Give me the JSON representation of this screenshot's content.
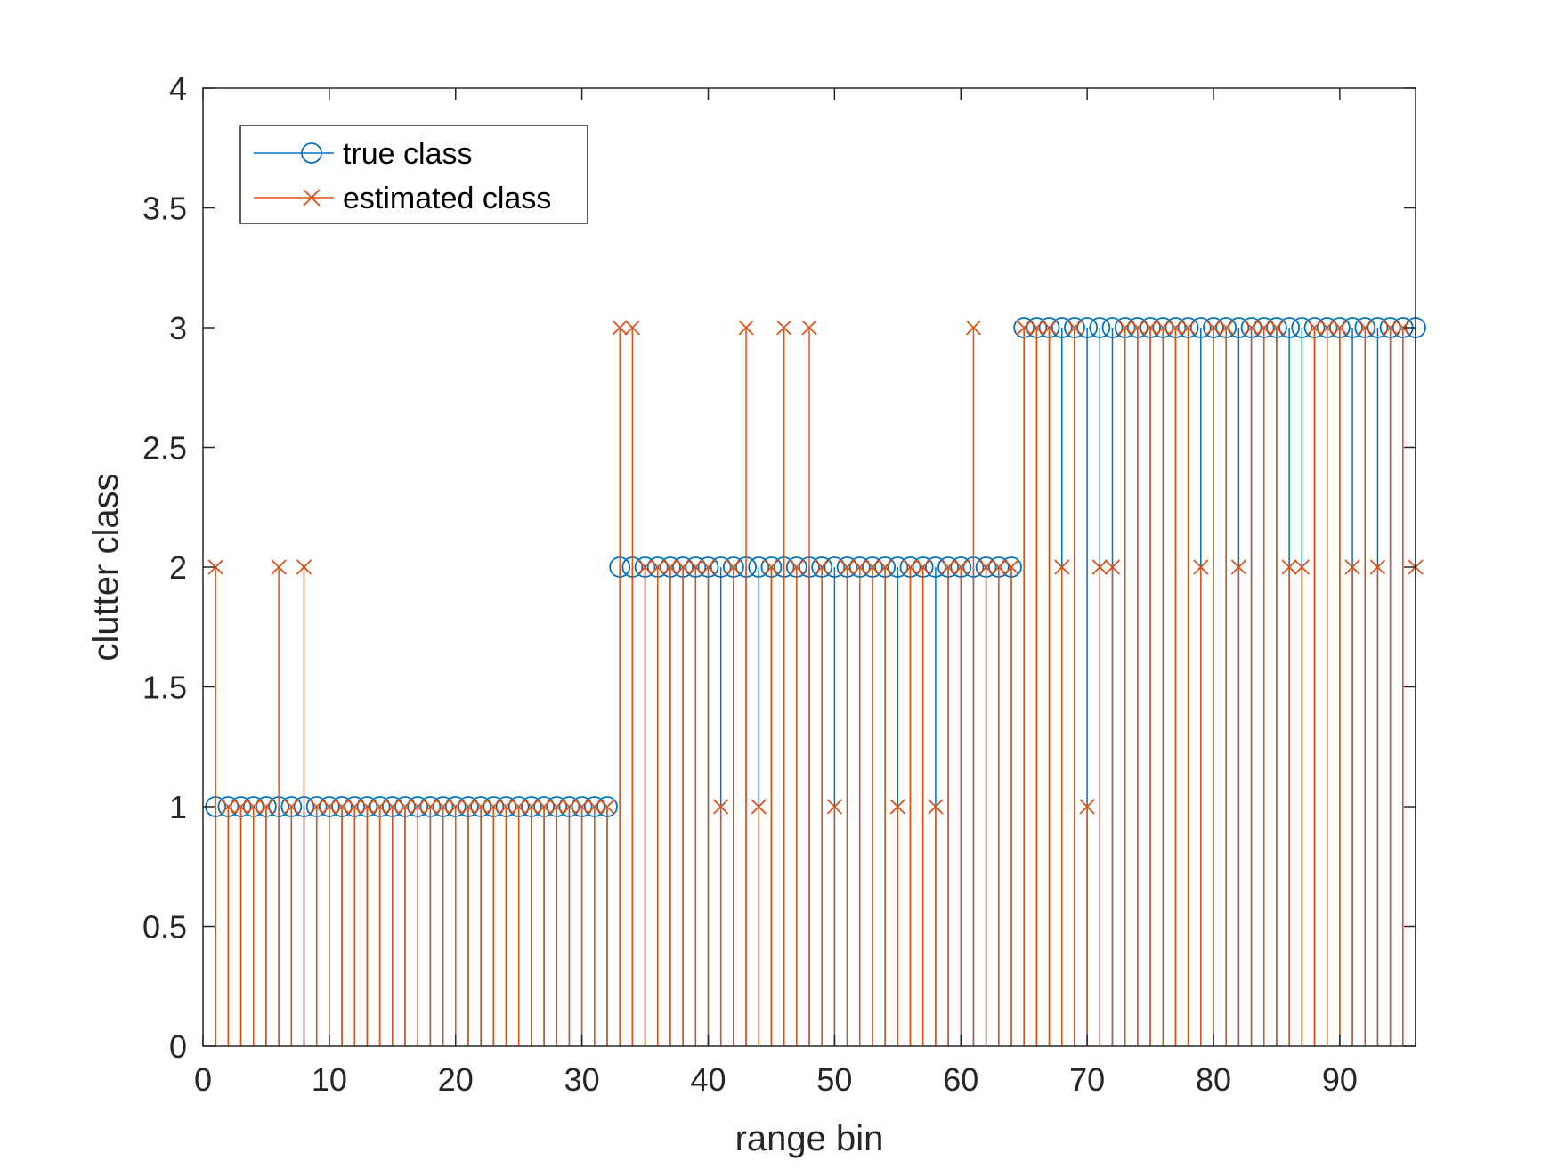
{
  "chart_data": {
    "type": "stem",
    "title": "",
    "xlabel": "range bin",
    "ylabel": "clutter class",
    "xlim": [
      0,
      96
    ],
    "ylim": [
      0,
      4
    ],
    "xticks": [
      0,
      10,
      20,
      30,
      40,
      50,
      60,
      70,
      80,
      90
    ],
    "yticks": [
      0,
      0.5,
      1,
      1.5,
      2,
      2.5,
      3,
      3.5,
      4
    ],
    "xtick_labels": [
      "0",
      "10",
      "20",
      "30",
      "40",
      "50",
      "60",
      "70",
      "80",
      "90"
    ],
    "ytick_labels": [
      "0",
      "0.5",
      "1",
      "1.5",
      "2",
      "2.5",
      "3",
      "3.5",
      "4"
    ],
    "grid": false,
    "legend_position": "top-left",
    "x": [
      1,
      2,
      3,
      4,
      5,
      6,
      7,
      8,
      9,
      10,
      11,
      12,
      13,
      14,
      15,
      16,
      17,
      18,
      19,
      20,
      21,
      22,
      23,
      24,
      25,
      26,
      27,
      28,
      29,
      30,
      31,
      32,
      33,
      34,
      35,
      36,
      37,
      38,
      39,
      40,
      41,
      42,
      43,
      44,
      45,
      46,
      47,
      48,
      49,
      50,
      51,
      52,
      53,
      54,
      55,
      56,
      57,
      58,
      59,
      60,
      61,
      62,
      63,
      64,
      65,
      66,
      67,
      68,
      69,
      70,
      71,
      72,
      73,
      74,
      75,
      76,
      77,
      78,
      79,
      80,
      81,
      82,
      83,
      84,
      85,
      86,
      87,
      88,
      89,
      90,
      91,
      92,
      93,
      94,
      95,
      96
    ],
    "series": [
      {
        "name": "true class",
        "color": "#0072BD",
        "marker": "circle",
        "values": [
          1,
          1,
          1,
          1,
          1,
          1,
          1,
          1,
          1,
          1,
          1,
          1,
          1,
          1,
          1,
          1,
          1,
          1,
          1,
          1,
          1,
          1,
          1,
          1,
          1,
          1,
          1,
          1,
          1,
          1,
          1,
          1,
          2,
          2,
          2,
          2,
          2,
          2,
          2,
          2,
          2,
          2,
          2,
          2,
          2,
          2,
          2,
          2,
          2,
          2,
          2,
          2,
          2,
          2,
          2,
          2,
          2,
          2,
          2,
          2,
          2,
          2,
          2,
          2,
          3,
          3,
          3,
          3,
          3,
          3,
          3,
          3,
          3,
          3,
          3,
          3,
          3,
          3,
          3,
          3,
          3,
          3,
          3,
          3,
          3,
          3,
          3,
          3,
          3,
          3,
          3,
          3,
          3,
          3,
          3,
          3
        ]
      },
      {
        "name": "estimated class",
        "color": "#D95319",
        "marker": "x",
        "values": [
          2,
          1,
          1,
          1,
          1,
          2,
          1,
          2,
          1,
          1,
          1,
          1,
          1,
          1,
          1,
          1,
          1,
          1,
          1,
          1,
          1,
          1,
          1,
          1,
          1,
          1,
          1,
          1,
          1,
          1,
          1,
          1,
          3,
          3,
          2,
          2,
          2,
          2,
          2,
          2,
          1,
          2,
          3,
          1,
          2,
          3,
          2,
          3,
          2,
          1,
          2,
          2,
          2,
          2,
          1,
          2,
          2,
          1,
          2,
          2,
          3,
          2,
          2,
          2,
          3,
          3,
          3,
          2,
          3,
          1,
          2,
          2,
          3,
          3,
          3,
          3,
          3,
          3,
          2,
          3,
          3,
          2,
          3,
          3,
          3,
          2,
          2,
          3,
          3,
          3,
          2,
          3,
          2,
          3,
          3,
          2
        ]
      }
    ]
  }
}
